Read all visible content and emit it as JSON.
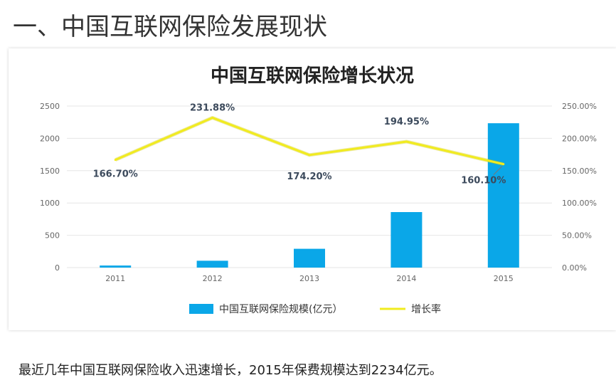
{
  "heading": "一、中国互联网保险发展现状",
  "caption": "最近几年中国互联网保险收入迅速增长，2015年保费规模达到2234亿元。",
  "colors": {
    "bar": "#0aa7e8",
    "line": "#f1eb1f",
    "grid": "#e6e6e6",
    "axis_text": "#666666"
  },
  "chart_data": {
    "type": "bar+line",
    "title": "中国互联网保险增长状况",
    "categories": [
      "2011",
      "2012",
      "2013",
      "2014",
      "2015"
    ],
    "series": [
      {
        "name": "中国互联网保险规模(亿元）",
        "type": "bar",
        "axis": "left",
        "values": [
          32,
          106,
          291,
          859,
          2234
        ]
      },
      {
        "name": "增长率",
        "type": "line",
        "axis": "right",
        "values": [
          166.7,
          231.88,
          174.2,
          194.95,
          160.1
        ]
      }
    ],
    "data_labels": [
      "166.70%",
      "231.88%",
      "174.20%",
      "194.95%",
      "160.10%"
    ],
    "y_left": {
      "ticks": [
        "0",
        "500",
        "1000",
        "1500",
        "2000",
        "2500"
      ],
      "ylim": [
        0,
        2500
      ]
    },
    "y_right": {
      "ticks": [
        "0.00%",
        "50.00%",
        "100.00%",
        "150.00%",
        "200.00%",
        "250.00%"
      ],
      "ylim": [
        0,
        250
      ]
    },
    "grid": true,
    "legend": "bottom"
  }
}
